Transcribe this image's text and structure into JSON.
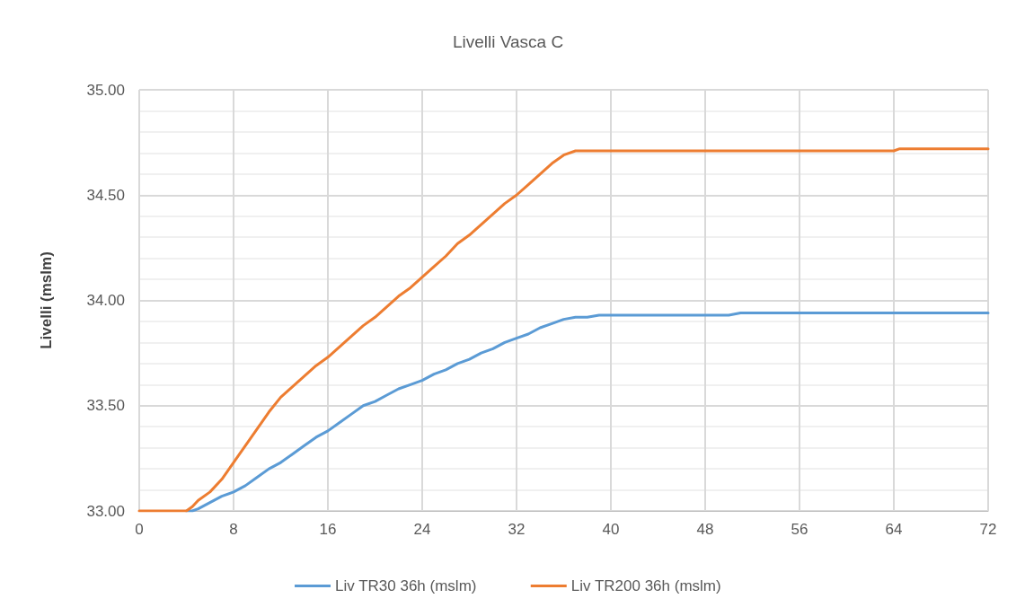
{
  "chart_data": {
    "type": "line",
    "title": "Livelli Vasca C",
    "ylabel": "Livelli (mslm)",
    "x": [
      0,
      1,
      2,
      3,
      4,
      4.5,
      5,
      6,
      7,
      8,
      9,
      10,
      11,
      12,
      13,
      14,
      15,
      16,
      17,
      18,
      19,
      20,
      21,
      22,
      23,
      24,
      25,
      26,
      27,
      28,
      29,
      30,
      31,
      32,
      33,
      34,
      35,
      36,
      37,
      38,
      39,
      50,
      51,
      64,
      64.5,
      72
    ],
    "series": [
      {
        "name": "Liv TR30 36h (mslm)",
        "color": "#5b9bd5",
        "values": [
          null,
          null,
          null,
          null,
          33.0,
          33.0,
          33.01,
          33.04,
          33.07,
          33.09,
          33.12,
          33.16,
          33.2,
          33.23,
          33.27,
          33.31,
          33.35,
          33.38,
          33.42,
          33.46,
          33.5,
          33.52,
          33.55,
          33.58,
          33.6,
          33.62,
          33.65,
          33.67,
          33.7,
          33.72,
          33.75,
          33.77,
          33.8,
          33.82,
          33.84,
          33.87,
          33.89,
          33.91,
          33.92,
          33.92,
          33.93,
          33.93,
          33.94,
          33.94,
          33.94,
          33.94
        ]
      },
      {
        "name": "Liv TR200 36h (mslm)",
        "color": "#ed7d31",
        "values": [
          33.0,
          33.0,
          33.0,
          33.0,
          33.0,
          33.02,
          33.05,
          33.09,
          33.15,
          33.23,
          33.31,
          33.39,
          33.47,
          33.54,
          33.59,
          33.64,
          33.69,
          33.73,
          33.78,
          33.83,
          33.88,
          33.92,
          33.97,
          34.02,
          34.06,
          34.11,
          34.16,
          34.21,
          34.27,
          34.31,
          34.36,
          34.41,
          34.46,
          34.5,
          34.55,
          34.6,
          34.65,
          34.69,
          34.71,
          34.71,
          34.71,
          34.71,
          34.71,
          34.71,
          34.72,
          34.72
        ]
      }
    ],
    "xlim": [
      0,
      72
    ],
    "xticks": [
      0,
      8,
      16,
      24,
      32,
      40,
      48,
      56,
      64,
      72
    ],
    "ylim": [
      33,
      35
    ],
    "yticks": [
      {
        "value": 33,
        "label": "33.00"
      },
      {
        "value": 33.5,
        "label": "33.50"
      },
      {
        "value": 34,
        "label": "34.00"
      },
      {
        "value": 34.5,
        "label": "34.50"
      },
      {
        "value": 35,
        "label": "35.00"
      }
    ],
    "grid": true,
    "legend": "bottom",
    "marker": "none",
    "line_style": "solid"
  }
}
